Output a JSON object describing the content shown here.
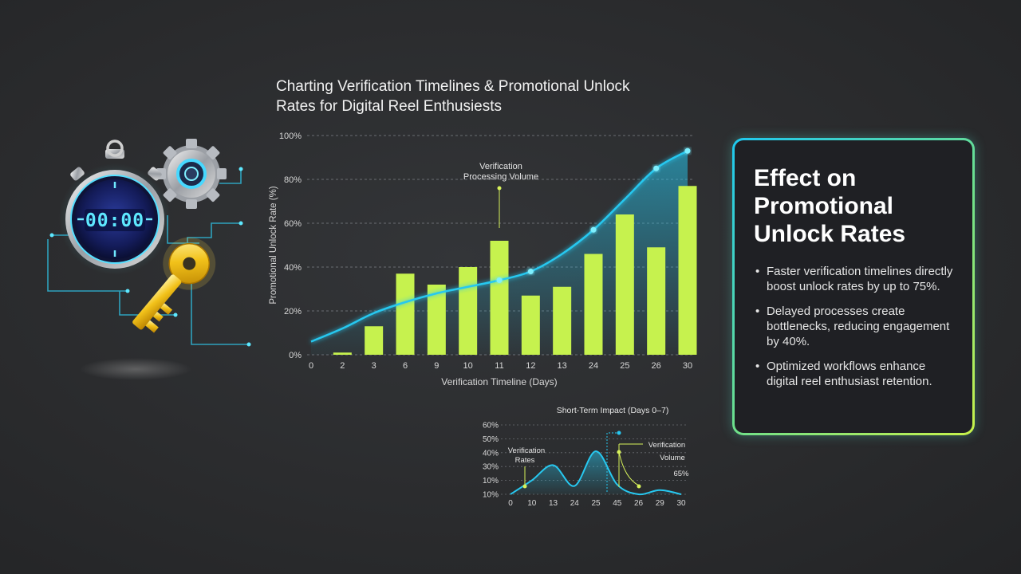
{
  "title": "Charting Verification Timelines & Promotional Unlock Rates for Digital Reel Enthusiests",
  "illustration": {
    "stopwatch_display": "00:00",
    "icons": [
      "stopwatch-icon",
      "gear-icon",
      "key-icon"
    ]
  },
  "colors": {
    "bar": "#c6f24e",
    "line": "#27c8f0",
    "accent": "#d7f25a",
    "panel_border_start": "#1ec8f0",
    "panel_border_end": "#c8f24a"
  },
  "chart_data": [
    {
      "type": "bar",
      "title": "",
      "xlabel": "Verification Timeline (Days)",
      "ylabel": "Promotional Unlock Rate (%)",
      "ylim": [
        0,
        100
      ],
      "yticks": [
        "0%",
        "20%",
        "40%",
        "60%",
        "80%",
        "100%"
      ],
      "grid": true,
      "categories": [
        "0",
        "2",
        "3",
        "6",
        "9",
        "10",
        "11",
        "12",
        "13",
        "24",
        "25",
        "26",
        "30"
      ],
      "values": [
        0,
        1,
        13,
        37,
        32,
        40,
        52,
        27,
        31,
        46,
        64,
        49,
        77
      ],
      "trend_line": [
        6,
        12,
        19,
        24,
        28,
        31,
        34,
        38,
        46,
        57,
        71,
        85,
        93
      ],
      "marked_points": [
        6,
        7,
        9,
        11,
        12
      ],
      "annotation": {
        "text": "Verification Processing Volume",
        "category": "11",
        "y": 76
      }
    },
    {
      "type": "area",
      "title": "Short-Term Impact (Days 0–7)",
      "yticks": [
        "10%",
        "10%",
        "30%",
        "40%",
        "50%",
        "60%"
      ],
      "x": [
        "0",
        "10",
        "13",
        "24",
        "25",
        "45",
        "26",
        "29",
        "30"
      ],
      "values": [
        10,
        20,
        31,
        16,
        41,
        17,
        10,
        13,
        10
      ],
      "annotations": [
        {
          "text": "Verification Rates"
        },
        {
          "text": "Verification Volume"
        },
        {
          "text": "65%"
        }
      ]
    }
  ],
  "panel": {
    "heading": "Effect on Promotional Unlock Rates",
    "bullets": [
      "Faster verification timelines directly boost unlock rates by up to 75%.",
      "Delayed processes create bottlenecks, reducing engagement by 40%.",
      "Optimized workflows enhance digital reel enthusiast retention."
    ]
  }
}
